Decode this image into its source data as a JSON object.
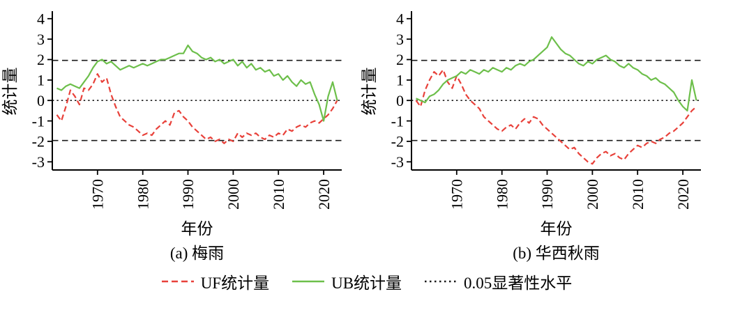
{
  "page": {
    "background": "#ffffff"
  },
  "colors": {
    "uf_red": "#e8413a",
    "ub_green": "#6dbf4b",
    "reference_black": "#1a1a1a"
  },
  "legend": {
    "items": [
      {
        "label": "UF统计量",
        "style": "dashed",
        "color": "#e8413a"
      },
      {
        "label": "UB统计量",
        "style": "solid",
        "color": "#6dbf4b"
      },
      {
        "label": "0.05显著性水平",
        "style": "dotted",
        "color": "#1a1a1a"
      }
    ]
  },
  "chart_data": [
    {
      "type": "line",
      "title": "(a) 梅雨",
      "xlabel": "年份",
      "ylabel": "统计量",
      "xlim": [
        1960,
        2024
      ],
      "ylim": [
        -3.4,
        4.3
      ],
      "xticks": [
        1970,
        1980,
        1990,
        2000,
        2010,
        2020
      ],
      "yticks": [
        -3,
        -2,
        -1,
        0,
        1,
        2,
        3,
        4
      ],
      "reference_lines": [
        1.96,
        0,
        -1.96
      ],
      "significance_level": 1.96,
      "grid": false,
      "x": [
        1961,
        1962,
        1963,
        1964,
        1965,
        1966,
        1967,
        1968,
        1969,
        1970,
        1971,
        1972,
        1973,
        1974,
        1975,
        1976,
        1977,
        1978,
        1979,
        1980,
        1981,
        1982,
        1983,
        1984,
        1985,
        1986,
        1987,
        1988,
        1989,
        1990,
        1991,
        1992,
        1993,
        1994,
        1995,
        1996,
        1997,
        1998,
        1999,
        2000,
        2001,
        2002,
        2003,
        2004,
        2005,
        2006,
        2007,
        2008,
        2009,
        2010,
        2011,
        2012,
        2013,
        2014,
        2015,
        2016,
        2017,
        2018,
        2019,
        2020,
        2021,
        2022,
        2023
      ],
      "series": [
        {
          "name": "UF统计量",
          "color": "#e8413a",
          "dash": "dashed",
          "values": [
            -0.7,
            -1.0,
            -0.3,
            0.5,
            0.2,
            -0.2,
            0.6,
            0.5,
            0.8,
            1.3,
            0.9,
            1.1,
            0.3,
            -0.3,
            -0.8,
            -1.0,
            -1.2,
            -1.3,
            -1.5,
            -1.7,
            -1.6,
            -1.7,
            -1.4,
            -1.2,
            -1.0,
            -1.2,
            -0.6,
            -0.5,
            -0.8,
            -1.0,
            -1.3,
            -1.5,
            -1.7,
            -1.9,
            -1.8,
            -2.0,
            -1.9,
            -2.1,
            -1.9,
            -2.0,
            -1.6,
            -1.8,
            -1.6,
            -1.7,
            -1.6,
            -1.8,
            -1.9,
            -1.7,
            -1.8,
            -1.6,
            -1.7,
            -1.4,
            -1.5,
            -1.3,
            -1.2,
            -1.3,
            -1.1,
            -1.0,
            -1.1,
            -0.9,
            -0.7,
            -0.4,
            0.0
          ]
        },
        {
          "name": "UB统计量",
          "color": "#6dbf4b",
          "dash": "solid",
          "values": [
            0.6,
            0.5,
            0.7,
            0.8,
            0.7,
            0.6,
            0.9,
            1.2,
            1.6,
            1.9,
            2.0,
            1.8,
            1.9,
            1.7,
            1.5,
            1.6,
            1.7,
            1.6,
            1.7,
            1.8,
            1.7,
            1.8,
            1.9,
            2.0,
            2.0,
            2.1,
            2.2,
            2.3,
            2.3,
            2.7,
            2.4,
            2.3,
            2.1,
            2.0,
            2.1,
            1.9,
            2.0,
            1.8,
            1.9,
            2.0,
            1.7,
            1.9,
            1.6,
            1.8,
            1.5,
            1.6,
            1.4,
            1.5,
            1.2,
            1.3,
            1.0,
            1.2,
            0.9,
            0.7,
            1.0,
            0.8,
            0.9,
            0.3,
            -0.2,
            -1.0,
            0.2,
            0.9,
            0.0
          ]
        }
      ]
    },
    {
      "type": "line",
      "title": "(b) 华西秋雨",
      "xlabel": "年份",
      "ylabel": "统计量",
      "xlim": [
        1960,
        2024
      ],
      "ylim": [
        -3.4,
        4.3
      ],
      "xticks": [
        1970,
        1980,
        1990,
        2000,
        2010,
        2020
      ],
      "yticks": [
        -3,
        -2,
        -1,
        0,
        1,
        2,
        3,
        4
      ],
      "reference_lines": [
        1.96,
        0,
        -1.96
      ],
      "significance_level": 1.96,
      "grid": false,
      "x": [
        1961,
        1962,
        1963,
        1964,
        1965,
        1966,
        1967,
        1968,
        1969,
        1970,
        1971,
        1972,
        1973,
        1974,
        1975,
        1976,
        1977,
        1978,
        1979,
        1980,
        1981,
        1982,
        1983,
        1984,
        1985,
        1986,
        1987,
        1988,
        1989,
        1990,
        1991,
        1992,
        1993,
        1994,
        1995,
        1996,
        1997,
        1998,
        1999,
        2000,
        2001,
        2002,
        2003,
        2004,
        2005,
        2006,
        2007,
        2008,
        2009,
        2010,
        2011,
        2012,
        2013,
        2014,
        2015,
        2016,
        2017,
        2018,
        2019,
        2020,
        2021,
        2022,
        2023
      ],
      "series": [
        {
          "name": "UF统计量",
          "color": "#e8413a",
          "dash": "dashed",
          "values": [
            0.0,
            -0.3,
            0.5,
            1.0,
            1.4,
            1.2,
            1.5,
            0.9,
            0.6,
            1.2,
            0.8,
            0.3,
            0.0,
            -0.2,
            -0.4,
            -0.8,
            -1.0,
            -1.2,
            -1.4,
            -1.5,
            -1.3,
            -1.2,
            -1.4,
            -1.1,
            -0.9,
            -1.1,
            -0.8,
            -0.9,
            -1.2,
            -1.4,
            -1.6,
            -1.8,
            -2.0,
            -2.2,
            -2.4,
            -2.3,
            -2.6,
            -2.8,
            -3.0,
            -3.1,
            -2.8,
            -2.6,
            -2.5,
            -2.7,
            -2.6,
            -2.8,
            -2.9,
            -2.6,
            -2.4,
            -2.2,
            -2.3,
            -2.1,
            -2.0,
            -2.1,
            -1.9,
            -1.8,
            -1.6,
            -1.5,
            -1.3,
            -1.1,
            -0.8,
            -0.5,
            -0.3
          ]
        },
        {
          "name": "UB统计量",
          "color": "#6dbf4b",
          "dash": "solid",
          "values": [
            0.1,
            0.0,
            -0.1,
            0.2,
            0.3,
            0.5,
            0.8,
            1.0,
            1.1,
            1.2,
            1.4,
            1.3,
            1.5,
            1.4,
            1.3,
            1.5,
            1.4,
            1.6,
            1.5,
            1.4,
            1.6,
            1.5,
            1.7,
            1.8,
            1.7,
            1.9,
            2.0,
            2.2,
            2.4,
            2.6,
            3.1,
            2.8,
            2.5,
            2.3,
            2.2,
            2.0,
            1.8,
            1.7,
            1.9,
            1.8,
            2.0,
            2.1,
            2.2,
            2.0,
            1.9,
            1.7,
            1.6,
            1.8,
            1.6,
            1.5,
            1.3,
            1.2,
            1.0,
            1.1,
            0.9,
            0.8,
            0.6,
            0.4,
            0.0,
            -0.3,
            -0.5,
            1.0,
            0.0
          ]
        }
      ]
    }
  ]
}
